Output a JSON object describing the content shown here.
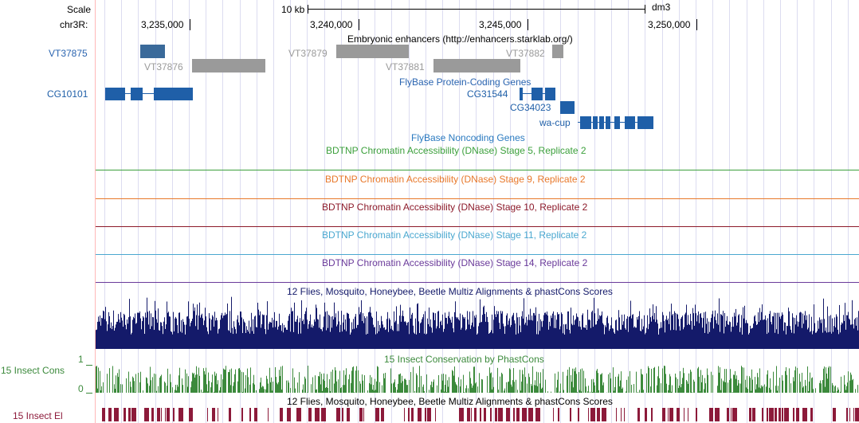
{
  "browser": {
    "ruler": {
      "scale_label": "Scale",
      "scale_value": "10 kb",
      "assembly": "dm3",
      "chrom_label": "chr3R:",
      "ticks": [
        "3,235,000",
        "3,240,000",
        "3,245,000",
        "3,250,000"
      ]
    },
    "tracks": {
      "enhancers": {
        "title": "Embryonic enhancers (http://enhancers.starklab.org/)",
        "items": [
          "VT37875",
          "VT37876",
          "VT37879",
          "VT37881",
          "VT37882"
        ]
      },
      "flybase_coding": {
        "title": "FlyBase Protein-Coding Genes",
        "genes": [
          "CG10101",
          "CG31544",
          "CG34023",
          "wa-cup"
        ]
      },
      "flybase_noncoding": {
        "title": "FlyBase Noncoding Genes"
      },
      "dnase": [
        {
          "title": "BDTNP Chromatin Accessibility (DNase) Stage 5, Replicate 2",
          "color": "#3ca03c"
        },
        {
          "title": "BDTNP Chromatin Accessibility (DNase) Stage 9, Replicate 2",
          "color": "#e8782a"
        },
        {
          "title": "BDTNP Chromatin Accessibility (DNase) Stage 10, Replicate 2",
          "color": "#8c1a2a"
        },
        {
          "title": "BDTNP Chromatin Accessibility (DNase) Stage 11, Replicate 2",
          "color": "#4aa8d0"
        },
        {
          "title": "BDTNP Chromatin Accessibility (DNase) Stage 14, Replicate 2",
          "color": "#6a3a9a"
        }
      ],
      "multiz": {
        "title": "12 Flies, Mosquito, Honeybee, Beetle Multiz Alignments & phastCons Scores",
        "color": "#141a6a"
      },
      "phastcons": {
        "title": "15 Insect Conservation by PhastCons",
        "side_label": "15 Insect Cons",
        "y_max": "1",
        "y_min": "0",
        "color": "#3c8a3c"
      },
      "elements": {
        "title": "12 Flies, Mosquito, Honeybee, Beetle Multiz Alignments & phastCons Scores",
        "side_label": "15 Insect El",
        "color": "#8c1a3a"
      }
    },
    "colors": {
      "gene_blue": "#1f5fa8",
      "link_blue": "#2a64b0",
      "enhancer_gray": "#9a9a9a",
      "enhancer_dark": "#3a6a9a"
    }
  }
}
